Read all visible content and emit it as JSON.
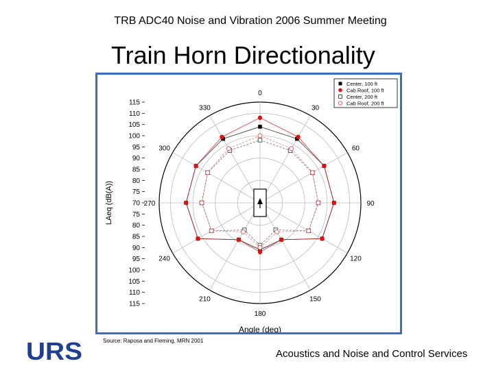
{
  "header": {
    "meeting": "TRB ADC40 Noise and Vibration 2006 Summer Meeting"
  },
  "slide": {
    "title": "Train Horn Directionality"
  },
  "source": "Source: Raposa and Fleming, MRN 2001",
  "footer": {
    "tagline": "Acoustics and Noise and Control Services"
  },
  "logo": {
    "text": "URS",
    "color": "#1f3f8f"
  },
  "chart_data": {
    "type": "polar-scatter",
    "ylabel": "LAeq (dB(A))",
    "xlabel": "Angle (deg)",
    "radial_ticks": [
      115,
      110,
      105,
      100,
      95,
      90,
      85,
      80,
      75,
      70
    ],
    "radial_range": [
      70,
      115
    ],
    "radial_ticks_lower": [
      75,
      80,
      85,
      90,
      95,
      100,
      105,
      110,
      115
    ],
    "angle_ticks": [
      "0",
      "30",
      "60",
      "90",
      "120",
      "150",
      "180",
      "210",
      "240",
      "270",
      "300",
      "330"
    ],
    "grid": true,
    "legend_position": "top-right",
    "series": [
      {
        "name": "Center, 100 ft",
        "marker": "square-filled",
        "color": "#000000",
        "points": [
          [
            0,
            104
          ],
          [
            30,
            103
          ],
          [
            60,
            103
          ],
          [
            90,
            103
          ],
          [
            120,
            102
          ],
          [
            150,
            89
          ],
          [
            180,
            91
          ],
          [
            210,
            89
          ],
          [
            240,
            102
          ],
          [
            270,
            103
          ],
          [
            300,
            103
          ],
          [
            330,
            103
          ]
        ]
      },
      {
        "name": "Cab Roof, 100 ft",
        "marker": "circle-filled",
        "color": "#e01010",
        "points": [
          [
            0,
            108
          ],
          [
            30,
            104
          ],
          [
            60,
            103
          ],
          [
            90,
            103
          ],
          [
            120,
            102
          ],
          [
            150,
            89
          ],
          [
            180,
            92
          ],
          [
            210,
            89
          ],
          [
            240,
            102
          ],
          [
            270,
            103
          ],
          [
            300,
            103
          ],
          [
            330,
            104
          ]
        ]
      },
      {
        "name": "Center, 200 ft",
        "marker": "square-open",
        "color": "#555555",
        "points": [
          [
            0,
            98
          ],
          [
            30,
            97
          ],
          [
            60,
            97
          ],
          [
            90,
            96
          ],
          [
            120,
            95
          ],
          [
            150,
            84
          ],
          [
            180,
            89
          ],
          [
            210,
            84
          ],
          [
            240,
            95
          ],
          [
            270,
            96
          ],
          [
            300,
            97
          ],
          [
            330,
            97
          ]
        ]
      },
      {
        "name": "Cab Roof, 200 ft",
        "marker": "circle-open",
        "color": "#e06060",
        "points": [
          [
            0,
            100
          ],
          [
            30,
            98
          ],
          [
            60,
            97
          ],
          [
            90,
            96
          ],
          [
            120,
            95
          ],
          [
            150,
            85
          ],
          [
            180,
            90
          ],
          [
            210,
            85
          ],
          [
            240,
            95
          ],
          [
            270,
            96
          ],
          [
            300,
            97
          ],
          [
            330,
            98
          ]
        ]
      }
    ]
  }
}
